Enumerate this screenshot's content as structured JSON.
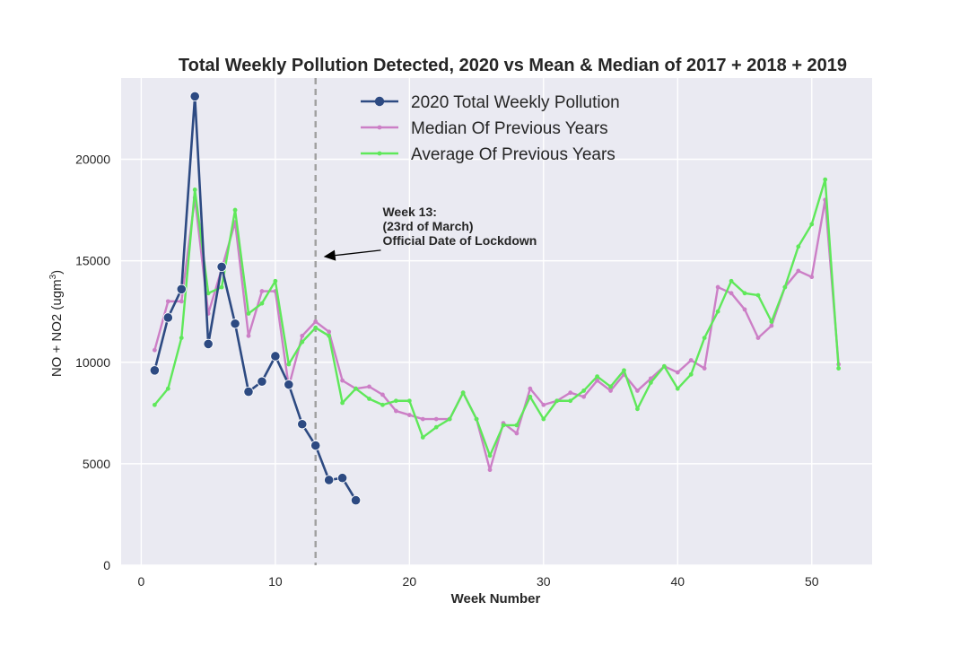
{
  "chart_data": {
    "type": "line",
    "title": "Total Weekly Pollution Detected, 2020 vs Mean & Median of 2017 + 2018 + 2019",
    "xlabel": "Week Number",
    "ylabel": "NO + NO2 (ugm",
    "ylabel_sup": "3",
    "ylabel_close": ")",
    "xlim": [
      -1.5,
      54.5
    ],
    "ylim": [
      0,
      24000
    ],
    "xticks": [
      0,
      10,
      20,
      30,
      40,
      50
    ],
    "yticks": [
      0,
      5000,
      10000,
      15000,
      20000
    ],
    "grid": true,
    "legend_position": "top-center",
    "vline": {
      "x": 13,
      "color": "#a0a0a0"
    },
    "annotation": {
      "lines": [
        "Week 13:",
        "(23rd of March)",
        "Official Date of Lockdown"
      ],
      "text_x": 18,
      "text_y": 17200,
      "arrow_x": 13.6,
      "arrow_y": 15200
    },
    "series": [
      {
        "name": "2020 Total Weekly Pollution",
        "color": "#2d4a82",
        "marker": "large",
        "x": [
          1,
          2,
          3,
          4,
          5,
          6,
          7,
          8,
          9,
          10,
          11,
          12,
          13,
          14,
          15,
          16
        ],
        "y": [
          9600,
          12200,
          13600,
          23100,
          10900,
          14700,
          11900,
          8550,
          9050,
          10300,
          8900,
          6950,
          5900,
          4200,
          4300,
          3200
        ]
      },
      {
        "name": "Median Of Previous Years",
        "color": "#cc7fc6",
        "marker": "small",
        "x": [
          1,
          2,
          3,
          4,
          5,
          6,
          7,
          8,
          9,
          10,
          11,
          12,
          13,
          14,
          15,
          16,
          17,
          18,
          19,
          20,
          21,
          22,
          23,
          24,
          25,
          26,
          27,
          28,
          29,
          30,
          31,
          32,
          33,
          34,
          35,
          36,
          37,
          38,
          39,
          40,
          41,
          42,
          43,
          44,
          45,
          46,
          47,
          48,
          49,
          50,
          51,
          52
        ],
        "y": [
          10600,
          13000,
          13000,
          18100,
          12400,
          14600,
          16900,
          11300,
          13500,
          13500,
          8800,
          11300,
          12000,
          11500,
          9100,
          8700,
          8800,
          8400,
          7600,
          7400,
          7200,
          7200,
          7200,
          8500,
          7200,
          4700,
          7000,
          6500,
          8700,
          7900,
          8100,
          8500,
          8300,
          9100,
          8600,
          9400,
          8600,
          9200,
          9800,
          9500,
          10100,
          9700,
          13700,
          13400,
          12600,
          11200,
          11800,
          13700,
          14500,
          14200,
          18000,
          9900
        ]
      },
      {
        "name": "Average Of Previous Years",
        "color": "#5fe85a",
        "marker": "small",
        "x": [
          1,
          2,
          3,
          4,
          5,
          6,
          7,
          8,
          9,
          10,
          11,
          12,
          13,
          14,
          15,
          16,
          17,
          18,
          19,
          20,
          21,
          22,
          23,
          24,
          25,
          26,
          27,
          28,
          29,
          30,
          31,
          32,
          33,
          34,
          35,
          36,
          37,
          38,
          39,
          40,
          41,
          42,
          43,
          44,
          45,
          46,
          47,
          48,
          49,
          50,
          51,
          52
        ],
        "y": [
          7900,
          8700,
          11200,
          18500,
          13400,
          13700,
          17500,
          12400,
          12900,
          14000,
          9900,
          11000,
          11700,
          11300,
          8000,
          8700,
          8200,
          7900,
          8100,
          8100,
          6300,
          6800,
          7200,
          8500,
          7200,
          5400,
          6900,
          6900,
          8300,
          7200,
          8100,
          8100,
          8600,
          9300,
          8800,
          9600,
          7700,
          9000,
          9800,
          8700,
          9400,
          11200,
          12500,
          14000,
          13400,
          13300,
          12000,
          13700,
          15700,
          16800,
          19000,
          9700
        ]
      }
    ]
  }
}
